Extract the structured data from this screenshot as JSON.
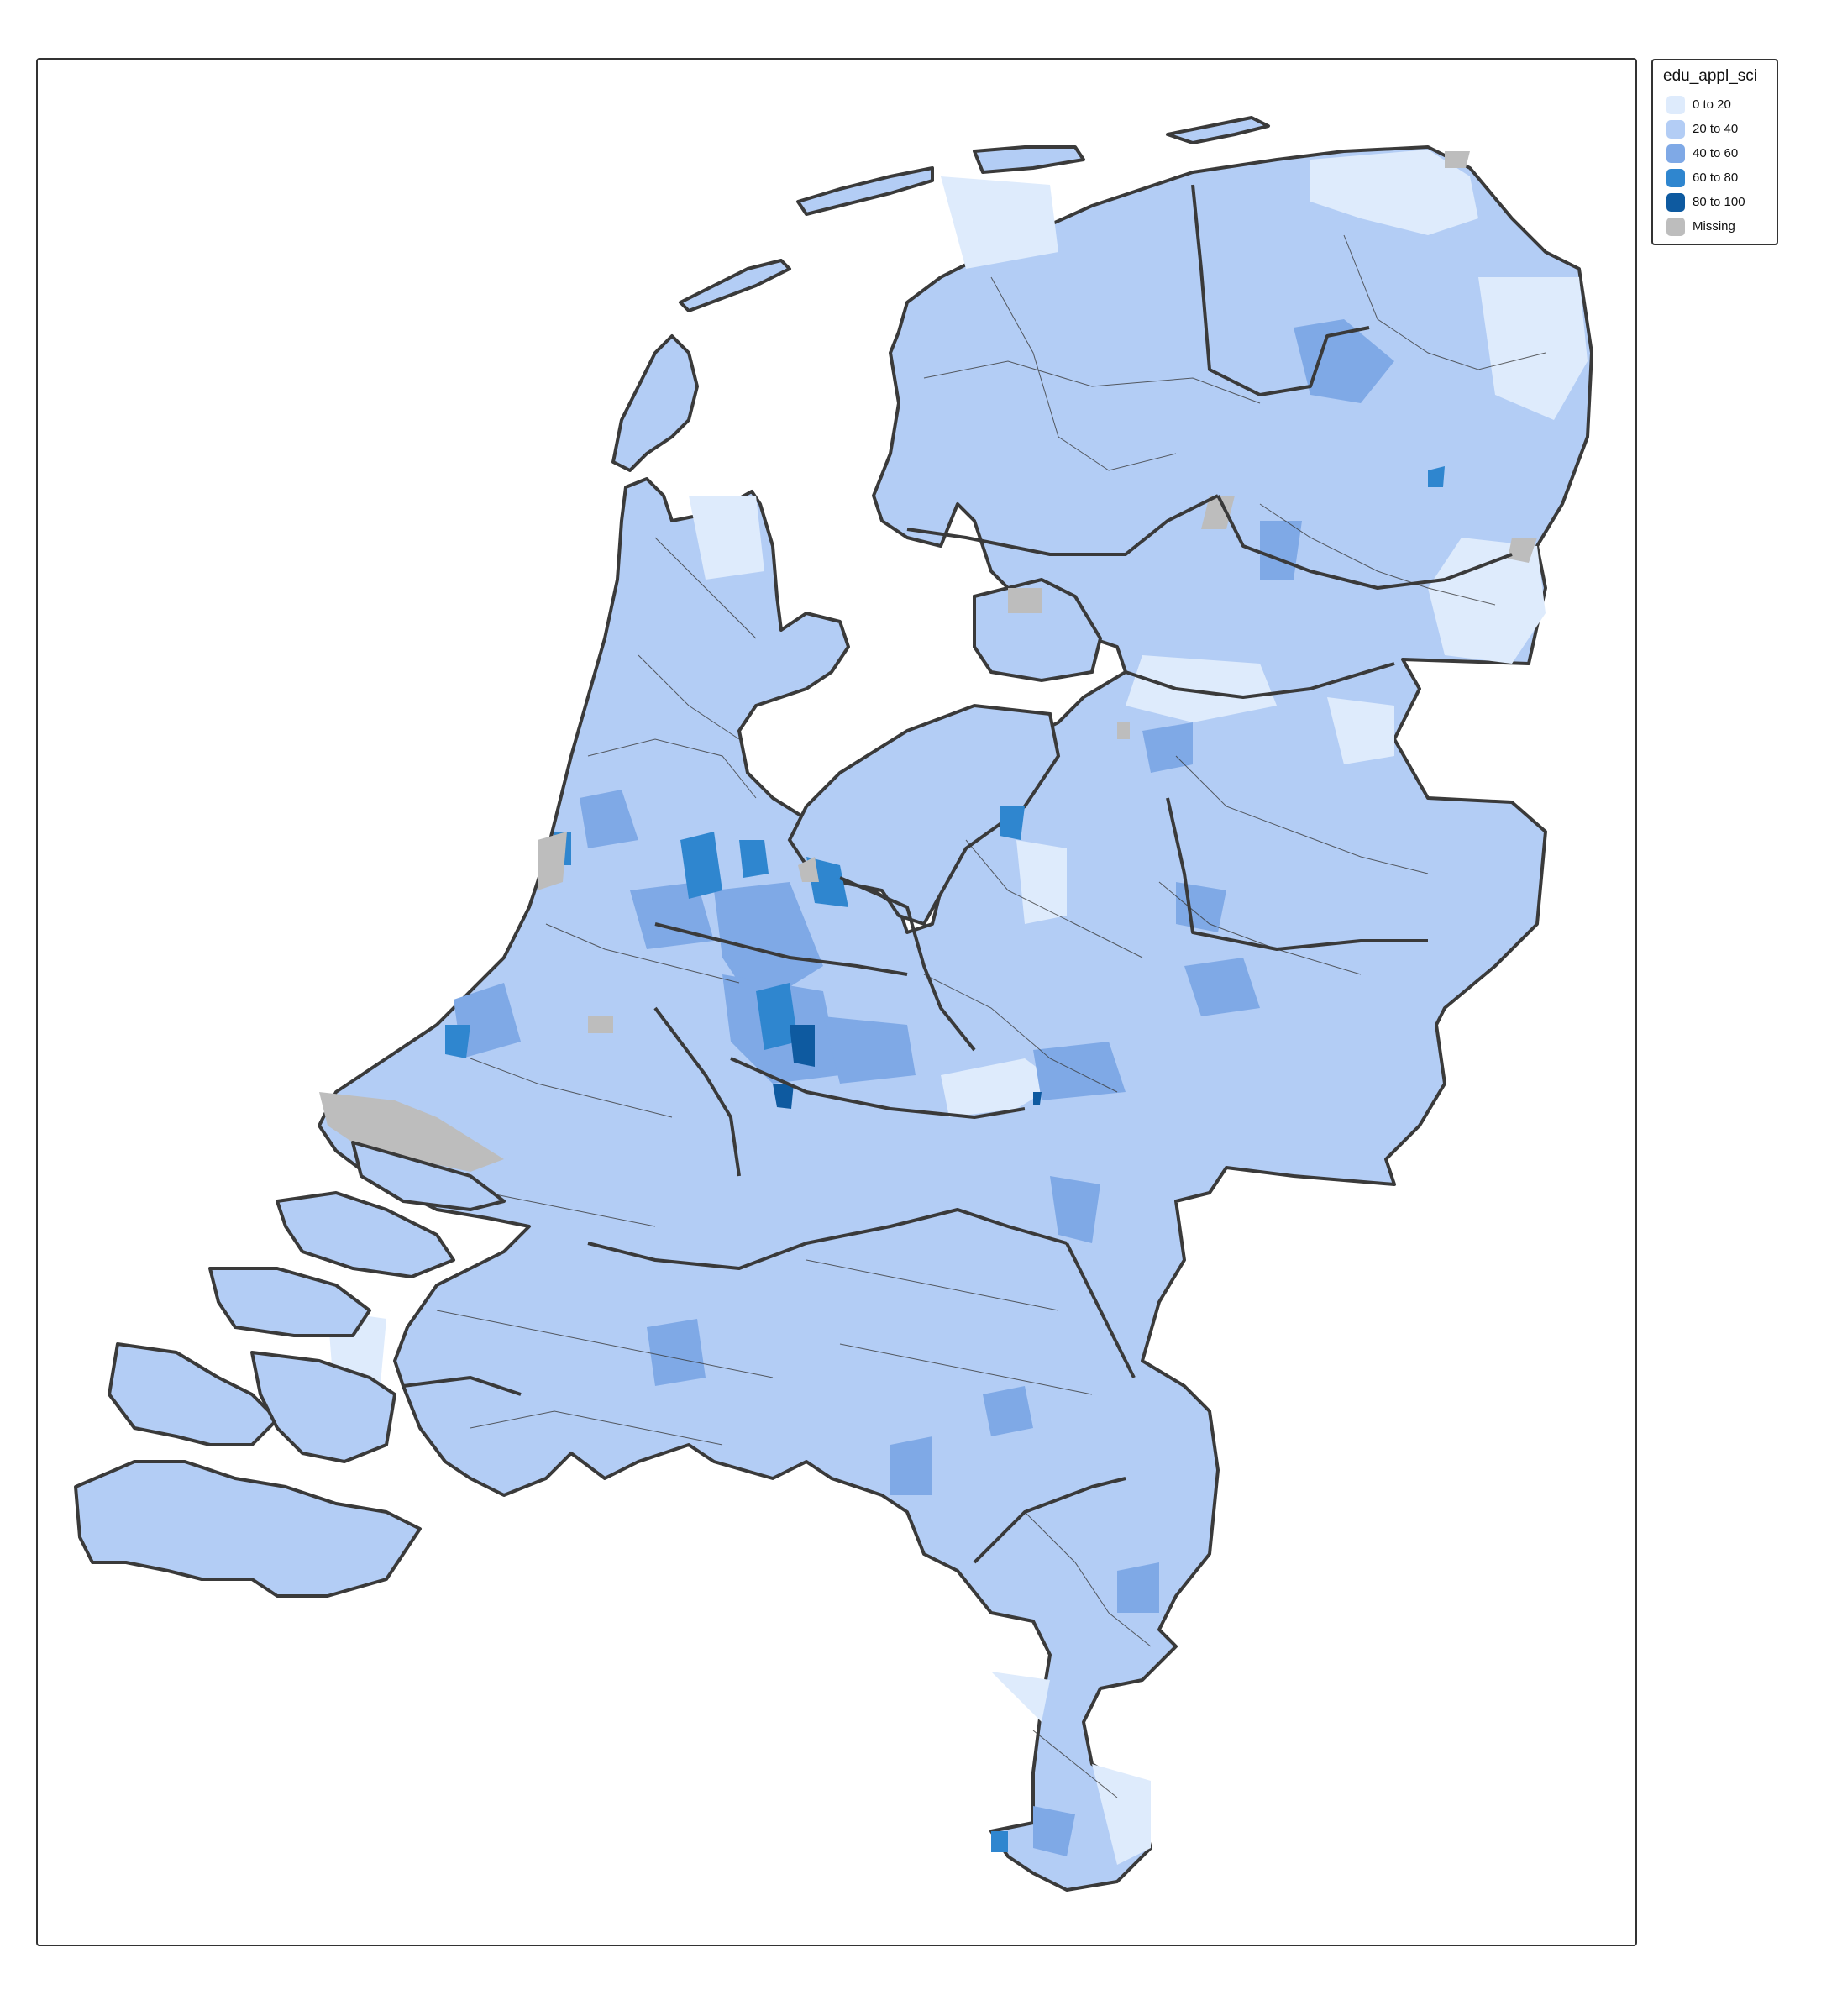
{
  "legend": {
    "title": "edu_appl_sci",
    "items": [
      {
        "label": "0 to 20",
        "color": "#deebfc"
      },
      {
        "label": "20 to 40",
        "color": "#b3cdf5"
      },
      {
        "label": "40 to 60",
        "color": "#7fa9e6"
      },
      {
        "label": "60 to 80",
        "color": "#2f86cf"
      },
      {
        "label": "80 to 100",
        "color": "#0e5aa0"
      },
      {
        "label": "Missing",
        "color": "#bdbdbd"
      }
    ]
  },
  "colors": {
    "border": "#3a3a3a",
    "background": "#ffffff"
  }
}
